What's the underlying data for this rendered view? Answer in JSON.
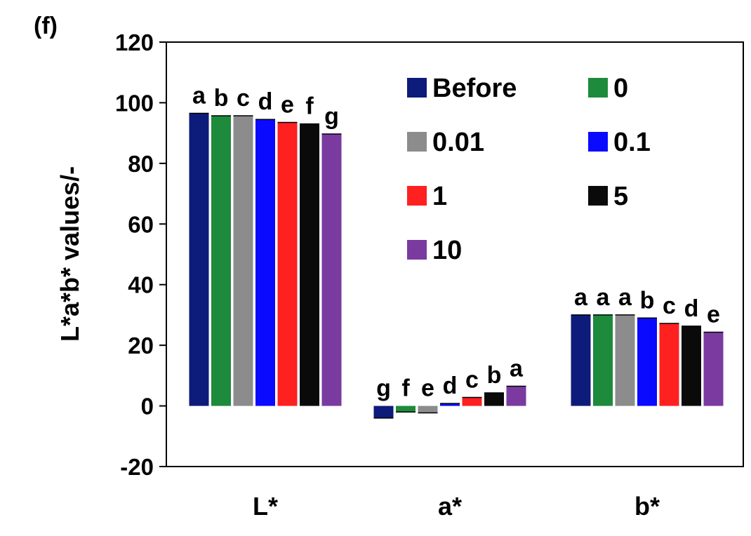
{
  "panel_label": "(f)",
  "chart_data": {
    "type": "bar",
    "title": "",
    "xlabel": "",
    "ylabel": "L*a*b* values/-",
    "ylim": [
      -20,
      120
    ],
    "yticks": [
      -20,
      0,
      20,
      40,
      60,
      80,
      100,
      120
    ],
    "categories": [
      "L*",
      "a*",
      "b*"
    ],
    "series": [
      {
        "name": "Before",
        "color": "#0d1b7a",
        "values": [
          96.5,
          -4.0,
          30.0
        ],
        "letters": [
          "a",
          "g",
          "a"
        ]
      },
      {
        "name": "0",
        "color": "#1e8a3c",
        "values": [
          95.7,
          -2.0,
          30.0
        ],
        "letters": [
          "b",
          "f",
          "a"
        ]
      },
      {
        "name": "0.01",
        "color": "#8c8c8c",
        "values": [
          95.7,
          -2.3,
          30.0
        ],
        "letters": [
          "c",
          "e",
          "a"
        ]
      },
      {
        "name": "0.1",
        "color": "#0a0aff",
        "values": [
          94.5,
          0.8,
          29.0
        ],
        "letters": [
          "d",
          "d",
          "b"
        ]
      },
      {
        "name": "1",
        "color": "#ff2020",
        "values": [
          93.5,
          2.8,
          27.2
        ],
        "letters": [
          "e",
          "c",
          "c"
        ]
      },
      {
        "name": "5",
        "color": "#0a0a0a",
        "values": [
          93.0,
          4.3,
          26.3
        ],
        "letters": [
          "f",
          "b",
          "d"
        ]
      },
      {
        "name": "10",
        "color": "#7a3aa0",
        "values": [
          89.7,
          6.5,
          24.3
        ],
        "letters": [
          "g",
          "a",
          "e"
        ]
      }
    ],
    "legend": {
      "placement": "top-center",
      "columns": 2
    },
    "grid": false
  }
}
